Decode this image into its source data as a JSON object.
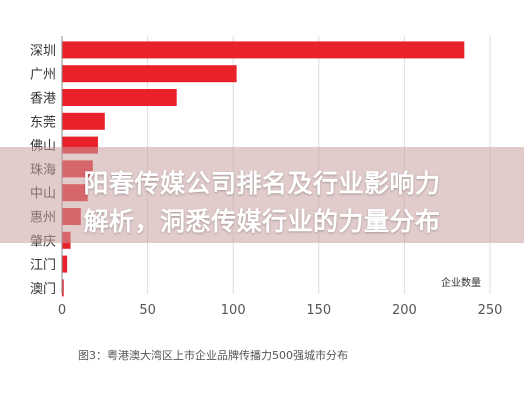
{
  "chart_data": {
    "type": "bar",
    "orientation": "horizontal",
    "categories": [
      "深圳",
      "广州",
      "香港",
      "东莞",
      "佛山",
      "珠海",
      "中山",
      "惠州",
      "肇庆",
      "江门",
      "澳门"
    ],
    "values": [
      235,
      102,
      67,
      25,
      21,
      18,
      15,
      11,
      5,
      3,
      1
    ],
    "bar_color": "#e8212b",
    "xlim": [
      0,
      250
    ],
    "xticks": [
      "0",
      "50",
      "100",
      "150",
      "200",
      "250"
    ],
    "legend": "企业数量",
    "legend_position": "bottom-right",
    "grid": true
  },
  "caption": "图3：粤港澳大湾区上市企业品牌传播力500强城市分布",
  "overlay": {
    "line1": "阳春传媒公司排名及行业影响力",
    "line2": "解析，洞悉传媒行业的力量分布"
  },
  "colors": {
    "bar": "#e8212b",
    "grid": "#dcdcdc",
    "overlay": "#c8a0a0"
  }
}
